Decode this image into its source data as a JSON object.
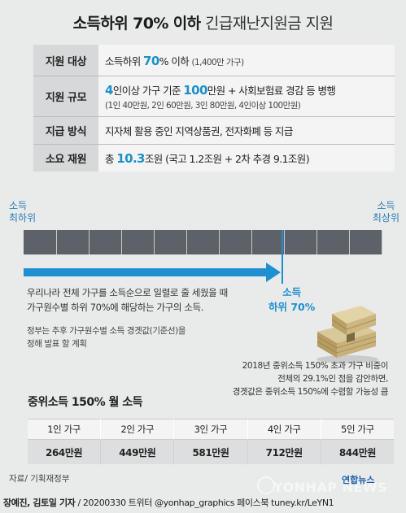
{
  "title": {
    "bold": "소득하위 70% 이하",
    "normal": "긴급재난지원금 지원"
  },
  "info": {
    "target": {
      "label": "지원 대상",
      "pre": "소득하위 ",
      "hl": "70",
      "post": "% 이하 ",
      "small": "(1,400만 가구)"
    },
    "scale": {
      "label": "지원 규모",
      "hl1": "4",
      "mid1": "인이상 가구 기준 ",
      "hl2": "100",
      "mid2": "만원 + 사회보험료 경감 등 병행",
      "sub": "(1인 40만원, 2인 60만원, 3인 80만원, 4인이상 100만원)"
    },
    "method": {
      "label": "지급 방식",
      "text": "지자체 활용 중인 지역상품권, 전자화폐 등 지급"
    },
    "funding": {
      "label": "소요 재원",
      "pre": "총 ",
      "hl": "10.3",
      "post": "조원 (국고 1.2조원 + 2차 추경 9.1조원)"
    }
  },
  "scale": {
    "left1": "소득",
    "left2": "최하위",
    "right1": "소득",
    "right2": "최상위",
    "median1": "소득",
    "median2": "하위 70%"
  },
  "desc": {
    "l1": "우리나라 전체 가구를 소득순으로 일렬로 줄 세웠을 때",
    "l2": "가구원수별 하위 70%에 해당하는 가구의 소득.",
    "n1": "정부는 추후 가구원수별 소득 경곗값(기준선)을",
    "n2": "정해 발표 할 계획"
  },
  "note": {
    "l1": "2018년 중위소득 150% 초과 가구 비중이",
    "l2": "전체의 29.1%인 점을 감안하면,",
    "l3": "경곗값은 중위소득 150%에 수렴할 가능성 큼"
  },
  "table": {
    "title": "중위소득 150% 월 소득",
    "headers": [
      "1인 가구",
      "2인 가구",
      "3인 가구",
      "4인 가구",
      "5인 가구"
    ],
    "values": [
      "264만원",
      "449만원",
      "581만원",
      "712만원",
      "844만원"
    ]
  },
  "source": "자료/ 기획재정부",
  "footer": {
    "authors": "장예진, 김토일 기자",
    "rest": " / 20200330 트위터 @yonhap_graphics  페이스북 tuney.kr/LeYN1"
  },
  "logo": "연합뉴스",
  "watermark": "YONHAP NEWS",
  "colors": {
    "accent": "#1e8fd0",
    "bar": "#5c6268",
    "bg": "#e9eaea"
  }
}
